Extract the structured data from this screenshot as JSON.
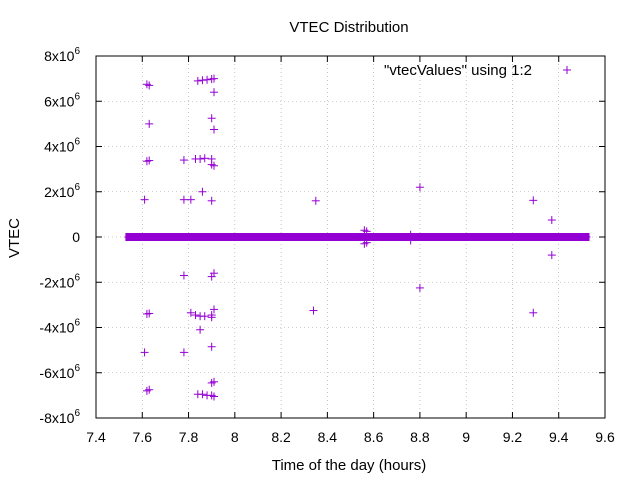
{
  "chart_data": {
    "type": "scatter",
    "title": "VTEC Distribution",
    "xlabel": "Time of the day (hours)",
    "ylabel": "VTEC",
    "xlim": [
      7.4,
      9.6
    ],
    "ylim": [
      -8000000,
      8000000
    ],
    "x_ticks": [
      "7.4",
      "7.6",
      "7.8",
      "8",
      "8.2",
      "8.4",
      "8.6",
      "8.8",
      "9",
      "9.2",
      "9.4",
      "9.6"
    ],
    "y_ticks": [
      {
        "mantissa": "-8x10",
        "exp": "6",
        "value": -8000000
      },
      {
        "mantissa": "-6x10",
        "exp": "6",
        "value": -6000000
      },
      {
        "mantissa": "-4x10",
        "exp": "6",
        "value": -4000000
      },
      {
        "mantissa": "-2x10",
        "exp": "6",
        "value": -2000000
      },
      {
        "mantissa": "0",
        "exp": "",
        "value": 0
      },
      {
        "mantissa": "2x10",
        "exp": "6",
        "value": 2000000
      },
      {
        "mantissa": "4x10",
        "exp": "6",
        "value": 4000000
      },
      {
        "mantissa": "6x10",
        "exp": "6",
        "value": 6000000
      },
      {
        "mantissa": "8x10",
        "exp": "6",
        "value": 8000000
      }
    ],
    "grid": true,
    "legend_position": "top-right",
    "marker": "+",
    "color": "#9400d3",
    "series": [
      {
        "name": "\"vtecValues\" using 1:2",
        "baseline_band": {
          "x_start": 7.54,
          "x_end": 9.52,
          "y": 0
        },
        "points": [
          [
            7.62,
            6750000.0
          ],
          [
            7.63,
            6700000.0
          ],
          [
            7.84,
            6900000.0
          ],
          [
            7.86,
            6930000.0
          ],
          [
            7.88,
            6950000.0
          ],
          [
            7.9,
            6980000.0
          ],
          [
            7.91,
            7000000.0
          ],
          [
            7.91,
            6400000.0
          ],
          [
            7.63,
            5000000.0
          ],
          [
            7.9,
            5250000.0
          ],
          [
            7.91,
            4750000.0
          ],
          [
            7.62,
            3350000.0
          ],
          [
            7.63,
            3380000.0
          ],
          [
            7.78,
            3400000.0
          ],
          [
            7.83,
            3450000.0
          ],
          [
            7.85,
            3450000.0
          ],
          [
            7.87,
            3480000.0
          ],
          [
            7.9,
            3450000.0
          ],
          [
            7.9,
            3200000.0
          ],
          [
            7.91,
            3150000.0
          ],
          [
            7.86,
            2000000.0
          ],
          [
            8.8,
            2200000.0
          ],
          [
            7.61,
            1650000.0
          ],
          [
            7.78,
            1650000.0
          ],
          [
            7.81,
            1650000.0
          ],
          [
            7.9,
            1600000.0
          ],
          [
            8.35,
            1600000.0
          ],
          [
            9.29,
            1620000.0
          ],
          [
            8.56,
            300000.0
          ],
          [
            8.57,
            250000.0
          ],
          [
            9.37,
            750000.0
          ],
          [
            8.56,
            -300000.0
          ],
          [
            8.57,
            -250000.0
          ],
          [
            9.37,
            -800000.0
          ],
          [
            7.78,
            -1700000.0
          ],
          [
            7.91,
            -1600000.0
          ],
          [
            7.9,
            -1750000.0
          ],
          [
            8.8,
            -2250000.0
          ],
          [
            7.62,
            -3400000.0
          ],
          [
            7.63,
            -3380000.0
          ],
          [
            7.81,
            -3350000.0
          ],
          [
            7.83,
            -3450000.0
          ],
          [
            7.85,
            -3500000.0
          ],
          [
            7.87,
            -3500000.0
          ],
          [
            7.9,
            -3450000.0
          ],
          [
            7.9,
            -3550000.0
          ],
          [
            7.91,
            -3200000.0
          ],
          [
            8.34,
            -3250000.0
          ],
          [
            9.29,
            -3350000.0
          ],
          [
            7.85,
            -4100000.0
          ],
          [
            7.61,
            -5100000.0
          ],
          [
            7.78,
            -5100000.0
          ],
          [
            7.9,
            -4850000.0
          ],
          [
            7.62,
            -6800000.0
          ],
          [
            7.63,
            -6750000.0
          ],
          [
            7.84,
            -6950000.0
          ],
          [
            7.86,
            -6950000.0
          ],
          [
            7.88,
            -7000000.0
          ],
          [
            7.9,
            -7000000.0
          ],
          [
            7.91,
            -7050000.0
          ],
          [
            7.9,
            -6450000.0
          ],
          [
            7.91,
            -6400000.0
          ],
          [
            7.54,
            0
          ],
          [
            7.6,
            0
          ],
          [
            7.7,
            0
          ],
          [
            7.8,
            0
          ],
          [
            7.9,
            0
          ],
          [
            8.0,
            0
          ],
          [
            8.1,
            0
          ],
          [
            8.2,
            0
          ],
          [
            8.3,
            0
          ],
          [
            8.4,
            0
          ],
          [
            8.5,
            0
          ],
          [
            8.6,
            0
          ],
          [
            8.7,
            0
          ],
          [
            8.76,
            100000.0
          ],
          [
            8.76,
            -150000.0
          ],
          [
            8.8,
            0
          ],
          [
            8.9,
            0
          ],
          [
            9.0,
            0
          ],
          [
            9.1,
            0
          ],
          [
            9.2,
            0
          ],
          [
            9.3,
            0
          ],
          [
            9.4,
            0
          ],
          [
            9.47,
            0
          ],
          [
            9.52,
            0
          ]
        ]
      }
    ]
  }
}
